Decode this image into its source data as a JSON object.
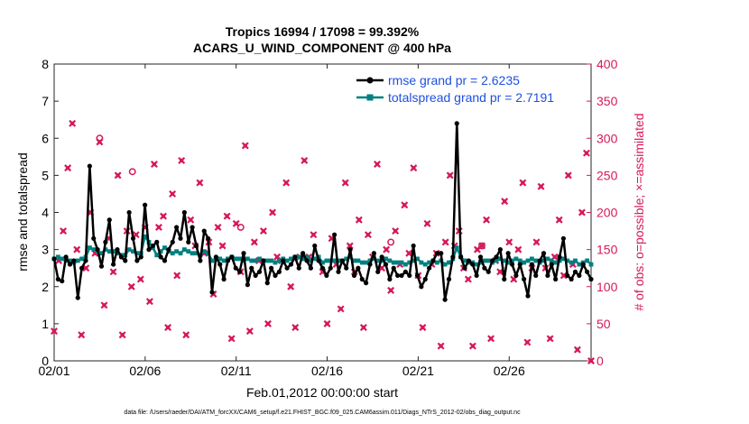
{
  "chart_data": {
    "type": "line",
    "title_line1": "Tropics 16994 / 17098 = 99.392%",
    "title_line2": "ACARS_U_WIND_COMPONENT @ 400 hPa",
    "xlabel": "Feb.01,2012 00:00:00 start",
    "ylabel_left": "rmse and totalspread",
    "ylabel_right": "# of obs: o=possible; ×=assimilated",
    "footer": "data file: /Users/raeder/DAI/ATM_forcXX/CAM6_setup/f.e21.FHIST_BGC.f09_025.CAM6assim.011/Diags_NTrS_2012-02/obs_diag_output.nc",
    "xlim": [
      0,
      29.5
    ],
    "x_ticks": [
      0,
      5,
      10,
      15,
      20,
      25
    ],
    "x_tick_labels": [
      "02/01",
      "02/06",
      "02/11",
      "02/16",
      "02/21",
      "02/26"
    ],
    "ylim_left": [
      0,
      8
    ],
    "y_ticks_left": [
      "0",
      "1",
      "2",
      "3",
      "4",
      "5",
      "6",
      "7",
      "8"
    ],
    "ylim_right": [
      0,
      400
    ],
    "y_ticks_right": [
      "0",
      "50",
      "100",
      "150",
      "200",
      "250",
      "300",
      "350",
      "400"
    ],
    "colors": {
      "rmse": "#000000",
      "spread": "#008080",
      "obs": "#d6195b",
      "legend_text": "#1f4fe0",
      "axis_right": "#d6195b"
    },
    "series": [
      {
        "name": "rmse grand pr = 2.6235",
        "key": "rmse",
        "values": [
          2.75,
          2.2,
          2.15,
          2.8,
          2.6,
          2.7,
          1.7,
          2.5,
          2.7,
          5.25,
          3.3,
          3.0,
          2.55,
          3.2,
          3.8,
          2.6,
          3.0,
          2.8,
          2.7,
          4.0,
          3.3,
          2.7,
          2.8,
          4.2,
          3.0,
          3.1,
          3.2,
          2.8,
          2.7,
          3.0,
          3.2,
          3.6,
          3.3,
          4.0,
          3.2,
          3.6,
          3.1,
          2.7,
          3.5,
          3.3,
          1.85,
          2.8,
          2.6,
          2.2,
          2.7,
          2.8,
          2.5,
          2.4,
          2.9,
          2.05,
          2.5,
          2.3,
          2.4,
          2.7,
          2.1,
          2.5,
          2.3,
          2.4,
          2.7,
          2.5,
          2.6,
          2.8,
          2.5,
          2.9,
          2.7,
          2.5,
          3.1,
          2.7,
          2.5,
          2.3,
          2.5,
          3.4,
          2.4,
          2.7,
          2.5,
          3.0,
          2.3,
          2.5,
          2.2,
          2.1,
          2.6,
          2.9,
          2.4,
          2.8,
          2.6,
          2.2,
          2.5,
          2.3,
          2.3,
          2.4,
          2.3,
          3.1,
          2.3,
          2.0,
          2.2,
          2.5,
          2.7,
          2.9,
          2.9,
          1.65,
          2.2,
          2.8,
          6.4,
          2.8,
          2.5,
          2.7,
          2.6,
          2.3,
          2.8,
          2.5,
          2.4,
          2.7,
          2.8,
          3.0,
          2.2,
          2.9,
          2.6,
          2.3,
          2.6,
          2.2,
          1.75,
          2.6,
          2.3,
          2.7,
          2.9,
          2.3,
          2.6,
          2.2,
          2.8,
          3.3,
          2.3,
          2.2,
          2.4,
          2.3,
          2.6,
          2.4,
          2.2
        ]
      },
      {
        "name": "totalspread grand pr = 2.7191",
        "key": "spread",
        "values": [
          2.75,
          2.8,
          2.75,
          2.7,
          2.7,
          2.65,
          2.7,
          2.75,
          2.8,
          3.05,
          3.0,
          2.95,
          2.9,
          3.0,
          2.95,
          2.95,
          2.9,
          2.85,
          2.85,
          3.0,
          2.95,
          2.9,
          2.9,
          3.35,
          3.2,
          3.05,
          2.85,
          2.95,
          3.05,
          2.95,
          2.9,
          2.95,
          2.9,
          3.0,
          2.95,
          2.9,
          2.9,
          2.85,
          2.95,
          2.9,
          2.7,
          2.75,
          2.75,
          2.7,
          2.75,
          2.8,
          2.75,
          2.75,
          2.7,
          2.75,
          2.7,
          2.7,
          2.75,
          2.7,
          2.7,
          2.7,
          2.65,
          2.7,
          2.75,
          2.7,
          2.75,
          2.8,
          2.8,
          2.75,
          2.8,
          2.7,
          2.75,
          2.8,
          2.65,
          2.7,
          2.7,
          2.7,
          2.7,
          2.7,
          2.75,
          2.8,
          2.7,
          2.7,
          2.65,
          2.65,
          2.7,
          2.75,
          2.7,
          2.7,
          2.75,
          2.7,
          2.65,
          2.65,
          2.65,
          2.6,
          2.65,
          2.7,
          2.75,
          2.65,
          2.6,
          2.65,
          2.7,
          2.65,
          2.7,
          2.6,
          2.65,
          2.75,
          3.05,
          2.8,
          2.7,
          2.65,
          2.65,
          2.6,
          2.65,
          2.7,
          2.7,
          2.65,
          2.7,
          2.75,
          2.7,
          2.65,
          2.7,
          2.75,
          2.7,
          2.65,
          2.7,
          2.75,
          2.7,
          2.65,
          2.7,
          2.75,
          2.7,
          2.65,
          2.7,
          2.75,
          2.7,
          2.65,
          2.7,
          2.6,
          2.65,
          2.7,
          2.6
        ]
      }
    ],
    "obs_possible_x": [
      2.5,
      4.3,
      10.25,
      18.5,
      23.5
    ],
    "obs_possible_y": [
      300,
      255,
      180,
      160,
      155
    ],
    "obs_assimilated": [
      [
        0,
        40
      ],
      [
        0.25,
        135
      ],
      [
        0.5,
        175
      ],
      [
        0.75,
        260
      ],
      [
        1.0,
        320
      ],
      [
        1.25,
        150
      ],
      [
        1.5,
        35
      ],
      [
        1.75,
        125
      ],
      [
        2.0,
        200
      ],
      [
        2.25,
        145
      ],
      [
        2.5,
        295
      ],
      [
        2.75,
        75
      ],
      [
        3.0,
        165
      ],
      [
        3.25,
        120
      ],
      [
        3.5,
        250
      ],
      [
        3.75,
        35
      ],
      [
        4.0,
        175
      ],
      [
        4.25,
        100
      ],
      [
        4.5,
        170
      ],
      [
        4.75,
        110
      ],
      [
        5.0,
        180
      ],
      [
        5.25,
        80
      ],
      [
        5.5,
        265
      ],
      [
        5.75,
        180
      ],
      [
        6.0,
        195
      ],
      [
        6.25,
        45
      ],
      [
        6.5,
        225
      ],
      [
        6.75,
        115
      ],
      [
        7.0,
        270
      ],
      [
        7.25,
        35
      ],
      [
        7.5,
        190
      ],
      [
        7.75,
        155
      ],
      [
        8.0,
        240
      ],
      [
        8.25,
        145
      ],
      [
        8.5,
        160
      ],
      [
        8.75,
        90
      ],
      [
        9.0,
        180
      ],
      [
        9.25,
        155
      ],
      [
        9.5,
        195
      ],
      [
        9.75,
        30
      ],
      [
        10.0,
        185
      ],
      [
        10.25,
        120
      ],
      [
        10.5,
        290
      ],
      [
        10.75,
        40
      ],
      [
        11.0,
        160
      ],
      [
        11.25,
        135
      ],
      [
        11.5,
        175
      ],
      [
        11.75,
        50
      ],
      [
        12.0,
        200
      ],
      [
        12.25,
        140
      ],
      [
        12.5,
        135
      ],
      [
        12.75,
        240
      ],
      [
        13.0,
        100
      ],
      [
        13.25,
        45
      ],
      [
        13.5,
        140
      ],
      [
        13.75,
        270
      ],
      [
        14.0,
        140
      ],
      [
        14.25,
        170
      ],
      [
        14.75,
        120
      ],
      [
        15.0,
        50
      ],
      [
        15.25,
        165
      ],
      [
        15.5,
        130
      ],
      [
        15.75,
        70
      ],
      [
        16.0,
        240
      ],
      [
        16.25,
        155
      ],
      [
        16.5,
        120
      ],
      [
        16.75,
        190
      ],
      [
        17.0,
        45
      ],
      [
        17.25,
        170
      ],
      [
        17.5,
        140
      ],
      [
        17.75,
        265
      ],
      [
        18.0,
        125
      ],
      [
        18.25,
        150
      ],
      [
        18.5,
        95
      ],
      [
        18.75,
        175
      ],
      [
        19.0,
        130
      ],
      [
        19.25,
        210
      ],
      [
        19.5,
        145
      ],
      [
        19.75,
        260
      ],
      [
        20.0,
        115
      ],
      [
        20.25,
        45
      ],
      [
        20.5,
        185
      ],
      [
        20.75,
        130
      ],
      [
        21.0,
        145
      ],
      [
        21.25,
        20
      ],
      [
        21.5,
        160
      ],
      [
        21.75,
        250
      ],
      [
        22.0,
        155
      ],
      [
        22.25,
        175
      ],
      [
        22.5,
        125
      ],
      [
        22.75,
        110
      ],
      [
        23.0,
        20
      ],
      [
        23.25,
        150
      ],
      [
        23.5,
        155
      ],
      [
        23.75,
        190
      ],
      [
        24.0,
        30
      ],
      [
        24.25,
        135
      ],
      [
        24.5,
        120
      ],
      [
        24.75,
        215
      ],
      [
        25.0,
        160
      ],
      [
        25.25,
        110
      ],
      [
        25.5,
        150
      ],
      [
        25.75,
        240
      ],
      [
        26.0,
        25
      ],
      [
        26.25,
        125
      ],
      [
        26.5,
        160
      ],
      [
        26.75,
        235
      ],
      [
        27.0,
        125
      ],
      [
        27.25,
        30
      ],
      [
        27.5,
        140
      ],
      [
        27.75,
        190
      ],
      [
        28.0,
        115
      ],
      [
        28.25,
        250
      ],
      [
        28.5,
        130
      ],
      [
        28.75,
        15
      ],
      [
        29.0,
        200
      ],
      [
        29.25,
        280
      ],
      [
        29.5,
        0
      ]
    ]
  }
}
